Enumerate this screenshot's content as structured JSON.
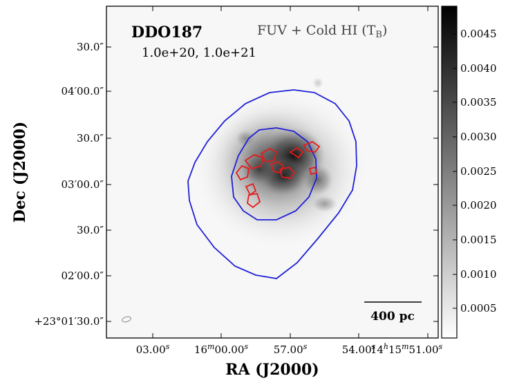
{
  "figure": {
    "object_name": "DDO187",
    "map_label": "FUV + Cold HI (T",
    "map_label_sub": "B",
    "map_label_close": ")",
    "contour_levels": "1.0e+20, 1.0e+21",
    "xlabel": "RA (J2000)",
    "ylabel": "Dec (J2000)",
    "scalebar_label": "400 pc",
    "dec_ticks": [
      "30.0″",
      "04′00.0″",
      "30.0″",
      "03′00.0″",
      "30.0″",
      "02′00.0″",
      "+23°01′30.0″"
    ],
    "ra_ticks": [
      {
        "main": "03.00",
        "sup": "s"
      },
      {
        "main": "16",
        "sup": "m",
        "main2": "00.00",
        "sup2": "s"
      },
      {
        "main": "57.00",
        "sup": "s"
      },
      {
        "main": "54.00",
        "sup": "s"
      },
      {
        "main": "14",
        "sup": "h",
        "main2": "15",
        "sup2": "m",
        "main3": "51.00",
        "sup3": "s"
      }
    ],
    "colorbar_ticks": [
      "0.0045",
      "0.0040",
      "0.0035",
      "0.0030",
      "0.0025",
      "0.0020",
      "0.0015",
      "0.0010",
      "0.0005"
    ],
    "colors": {
      "low_contour": "#1f1fd6",
      "high_contour": "#e61a1a",
      "beam": "#8a8a8a"
    }
  }
}
